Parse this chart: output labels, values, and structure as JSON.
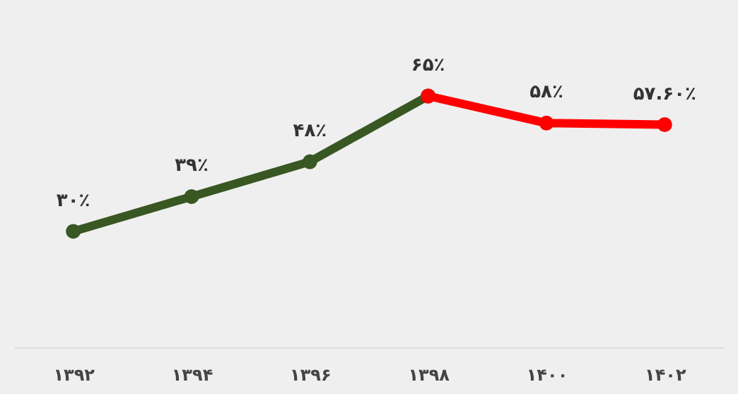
{
  "chart_data": {
    "type": "line",
    "categories": [
      "۱۳۹۲",
      "۱۳۹۴",
      "۱۳۹۶",
      "۱۳۹۸",
      "۱۴۰۰",
      "۱۴۰۲"
    ],
    "series": [
      {
        "color": "#385723",
        "values": [
          30,
          39,
          48,
          65,
          null,
          null
        ],
        "value_labels": [
          "۳۰٪",
          "۳۹٪",
          "۴۸٪",
          "۶۵٪",
          null,
          null
        ]
      },
      {
        "color": "#ff0000",
        "values": [
          null,
          null,
          null,
          65,
          58,
          57.6
        ],
        "value_labels": [
          null,
          null,
          null,
          null,
          "۵۸٪",
          "۵۷.۶۰٪"
        ]
      }
    ],
    "marker": "circle",
    "line_style": "solid"
  }
}
